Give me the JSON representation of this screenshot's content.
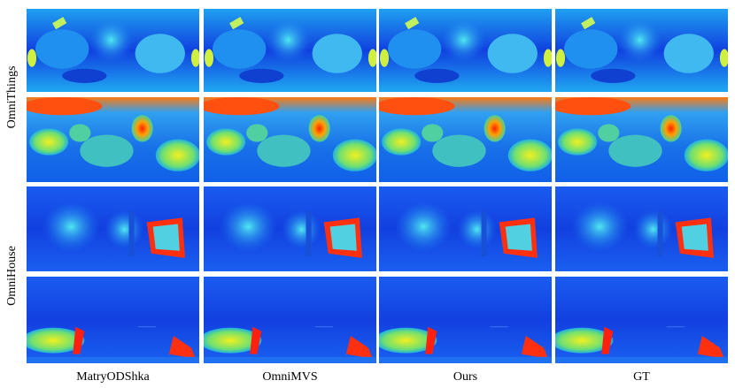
{
  "columns": [
    "MatryODShka",
    "OmniMVS",
    "Ours",
    "GT"
  ],
  "row_groups": [
    "OmniThings",
    "OmniHouse"
  ]
}
